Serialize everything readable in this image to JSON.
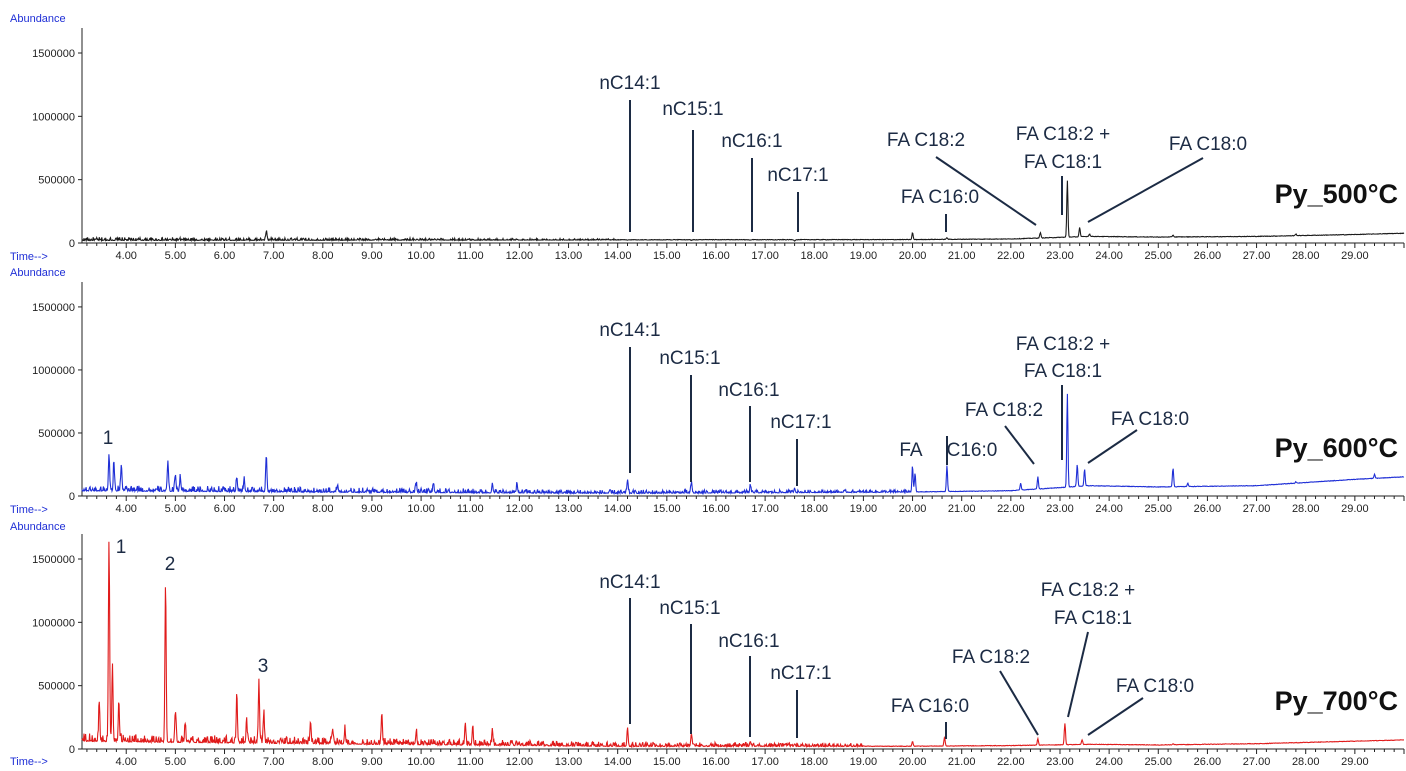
{
  "chart_data": [
    {
      "type": "line",
      "title": "Py_500°C",
      "ylabel": "Abundance",
      "xlabel": "Time-->",
      "color": "#1a1a1a",
      "ylim": [
        0,
        1650000
      ],
      "xlim": [
        3.1,
        30.0
      ],
      "yticks": [
        "0",
        "500000",
        "1000000",
        "1500000"
      ],
      "xticks": [
        "4.00",
        "5.00",
        "6.00",
        "7.00",
        "8.00",
        "9.00",
        "10.00",
        "11.00",
        "12.00",
        "13.00",
        "14.00",
        "15.00",
        "16.00",
        "17.00",
        "18.00",
        "19.00",
        "20.00",
        "21.00",
        "22.00",
        "23.00",
        "24.00",
        "25.00",
        "26.00",
        "27.00",
        "28.00",
        "29.00"
      ],
      "baseline": [
        [
          3.1,
          20000
        ],
        [
          10,
          22000
        ],
        [
          20,
          25000
        ],
        [
          22,
          30000
        ],
        [
          23.6,
          50000
        ],
        [
          25,
          45000
        ],
        [
          27,
          50000
        ],
        [
          29,
          65000
        ],
        [
          30,
          75000
        ]
      ],
      "peaks": [
        [
          6.85,
          90000
        ],
        [
          14.2,
          20000
        ],
        [
          15.5,
          20000
        ],
        [
          16.7,
          20000
        ],
        [
          17.6,
          15000
        ],
        [
          20.0,
          80000
        ],
        [
          20.7,
          40000
        ],
        [
          22.6,
          80000
        ],
        [
          23.15,
          490000
        ],
        [
          23.4,
          120000
        ],
        [
          23.6,
          70000
        ],
        [
          25.3,
          60000
        ],
        [
          27.8,
          70000
        ]
      ],
      "annotations": [
        {
          "text": "nC14:1",
          "x": 14.2,
          "y": 20000
        },
        {
          "text": "nC15:1",
          "x": 15.5,
          "y": 20000
        },
        {
          "text": "nC16:1",
          "x": 16.7,
          "y": 20000
        },
        {
          "text": "nC17:1",
          "x": 17.6,
          "y": 15000
        },
        {
          "text": "FA  C16:0",
          "x": 20.7,
          "y": 40000
        },
        {
          "text": "FA  C18:2",
          "x": 22.6,
          "y": 80000
        },
        {
          "text": "FA  C18:2 +",
          "x": 23.15,
          "y": 490000
        },
        {
          "text": "FA C18:1",
          "x": 23.15,
          "y": 490000
        },
        {
          "text": "FA  C18:0",
          "x": 23.5,
          "y": 120000
        }
      ]
    },
    {
      "type": "line",
      "title": "Py_600°C",
      "ylabel": "Abundance",
      "xlabel": "Time-->",
      "color": "#1f2fd6",
      "ylim": [
        0,
        1650000
      ],
      "xlim": [
        3.1,
        30.0
      ],
      "yticks": [
        "0",
        "500000",
        "1000000",
        "1500000"
      ],
      "xticks": [
        "4.00",
        "5.00",
        "6.00",
        "7.00",
        "8.00",
        "9.00",
        "10.00",
        "11.00",
        "12.00",
        "13.00",
        "14.00",
        "15.00",
        "16.00",
        "17.00",
        "18.00",
        "19.00",
        "20.00",
        "21.00",
        "22.00",
        "23.00",
        "24.00",
        "25.00",
        "26.00",
        "27.00",
        "28.00",
        "29.00"
      ],
      "baseline": [
        [
          3.1,
          40000
        ],
        [
          8,
          30000
        ],
        [
          14,
          20000
        ],
        [
          20,
          30000
        ],
        [
          22,
          40000
        ],
        [
          23.6,
          80000
        ],
        [
          25,
          70000
        ],
        [
          27,
          80000
        ],
        [
          29,
          130000
        ],
        [
          30,
          150000
        ]
      ],
      "peaks": [
        [
          3.65,
          330000
        ],
        [
          3.75,
          270000
        ],
        [
          3.9,
          250000
        ],
        [
          4.85,
          260000
        ],
        [
          5.0,
          170000
        ],
        [
          5.1,
          150000
        ],
        [
          6.25,
          150000
        ],
        [
          6.4,
          130000
        ],
        [
          6.85,
          330000
        ],
        [
          8.3,
          80000
        ],
        [
          9.9,
          90000
        ],
        [
          10.25,
          90000
        ],
        [
          11.45,
          80000
        ],
        [
          11.95,
          80000
        ],
        [
          14.2,
          130000
        ],
        [
          15.5,
          100000
        ],
        [
          16.7,
          80000
        ],
        [
          17.6,
          60000
        ],
        [
          20.0,
          230000
        ],
        [
          20.05,
          180000
        ],
        [
          20.7,
          240000
        ],
        [
          22.2,
          100000
        ],
        [
          22.55,
          150000
        ],
        [
          23.15,
          810000
        ],
        [
          23.35,
          250000
        ],
        [
          23.5,
          210000
        ],
        [
          25.3,
          220000
        ],
        [
          25.6,
          100000
        ],
        [
          27.8,
          110000
        ],
        [
          29.4,
          170000
        ]
      ],
      "annotations": [
        {
          "text": "1",
          "x": 3.65,
          "y": 330000
        },
        {
          "text": "nC14:1",
          "x": 14.2,
          "y": 130000
        },
        {
          "text": "nC15:1",
          "x": 15.5,
          "y": 100000
        },
        {
          "text": "nC16:1",
          "x": 16.7,
          "y": 80000
        },
        {
          "text": "nC17:1",
          "x": 17.6,
          "y": 60000
        },
        {
          "text": "FA",
          "x": 20.0,
          "y": 230000
        },
        {
          "text": "C16:0",
          "x": 20.7,
          "y": 240000
        },
        {
          "text": "FA  C18:2",
          "x": 22.55,
          "y": 150000
        },
        {
          "text": "FA  C18:2 +",
          "x": 23.15,
          "y": 810000
        },
        {
          "text": "FA C18:1",
          "x": 23.15,
          "y": 810000
        },
        {
          "text": "FA  C18:0",
          "x": 23.5,
          "y": 210000
        }
      ]
    },
    {
      "type": "line",
      "title": "Py_700°C",
      "ylabel": "Abundance",
      "xlabel": "Time-->",
      "color": "#e01b1b",
      "ylim": [
        0,
        1650000
      ],
      "xlim": [
        3.1,
        30.0
      ],
      "yticks": [
        "0",
        "500000",
        "1000000",
        "1500000"
      ],
      "xticks": [
        "4.00",
        "5.00",
        "6.00",
        "7.00",
        "8.00",
        "9.00",
        "10.00",
        "11.00",
        "12.00",
        "13.00",
        "14.00",
        "15.00",
        "16.00",
        "17.00",
        "18.00",
        "19.00",
        "20.00",
        "21.00",
        "22.00",
        "23.00",
        "24.00",
        "25.00",
        "26.00",
        "27.00",
        "28.00",
        "29.00"
      ],
      "baseline": [
        [
          3.1,
          60000
        ],
        [
          8,
          40000
        ],
        [
          14,
          20000
        ],
        [
          20,
          20000
        ],
        [
          22,
          25000
        ],
        [
          23.6,
          35000
        ],
        [
          25,
          30000
        ],
        [
          27,
          40000
        ],
        [
          29,
          60000
        ],
        [
          30,
          70000
        ]
      ],
      "peaks": [
        [
          3.45,
          370000
        ],
        [
          3.65,
          1650000
        ],
        [
          3.72,
          660000
        ],
        [
          3.85,
          380000
        ],
        [
          4.8,
          1320000
        ],
        [
          5.0,
          300000
        ],
        [
          5.2,
          200000
        ],
        [
          6.25,
          440000
        ],
        [
          6.45,
          200000
        ],
        [
          6.7,
          510000
        ],
        [
          6.8,
          280000
        ],
        [
          7.75,
          220000
        ],
        [
          8.2,
          160000
        ],
        [
          8.45,
          150000
        ],
        [
          9.2,
          290000
        ],
        [
          9.9,
          130000
        ],
        [
          10.9,
          200000
        ],
        [
          11.05,
          180000
        ],
        [
          11.45,
          150000
        ],
        [
          14.2,
          170000
        ],
        [
          15.5,
          120000
        ],
        [
          16.7,
          60000
        ],
        [
          17.6,
          40000
        ],
        [
          20.0,
          60000
        ],
        [
          20.65,
          90000
        ],
        [
          22.55,
          80000
        ],
        [
          23.1,
          200000
        ],
        [
          23.45,
          70000
        ],
        [
          25.3,
          40000
        ]
      ],
      "annotations": [
        {
          "text": "1",
          "x": 3.7,
          "y": 1650000
        },
        {
          "text": "2",
          "x": 4.8,
          "y": 1320000
        },
        {
          "text": "3",
          "x": 6.7,
          "y": 510000
        },
        {
          "text": "nC14:1",
          "x": 14.2,
          "y": 170000
        },
        {
          "text": "nC15:1",
          "x": 15.5,
          "y": 120000
        },
        {
          "text": "nC16:1",
          "x": 16.7,
          "y": 60000
        },
        {
          "text": "nC17:1",
          "x": 17.6,
          "y": 40000
        },
        {
          "text": "FA  C16:0",
          "x": 20.65,
          "y": 90000
        },
        {
          "text": "FA  C18:2",
          "x": 22.55,
          "y": 80000
        },
        {
          "text": "FA  C18:2 +",
          "x": 23.1,
          "y": 200000
        },
        {
          "text": "FA C18:1",
          "x": 23.1,
          "y": 200000
        },
        {
          "text": "FA  C18:0",
          "x": 23.45,
          "y": 70000
        }
      ]
    }
  ]
}
